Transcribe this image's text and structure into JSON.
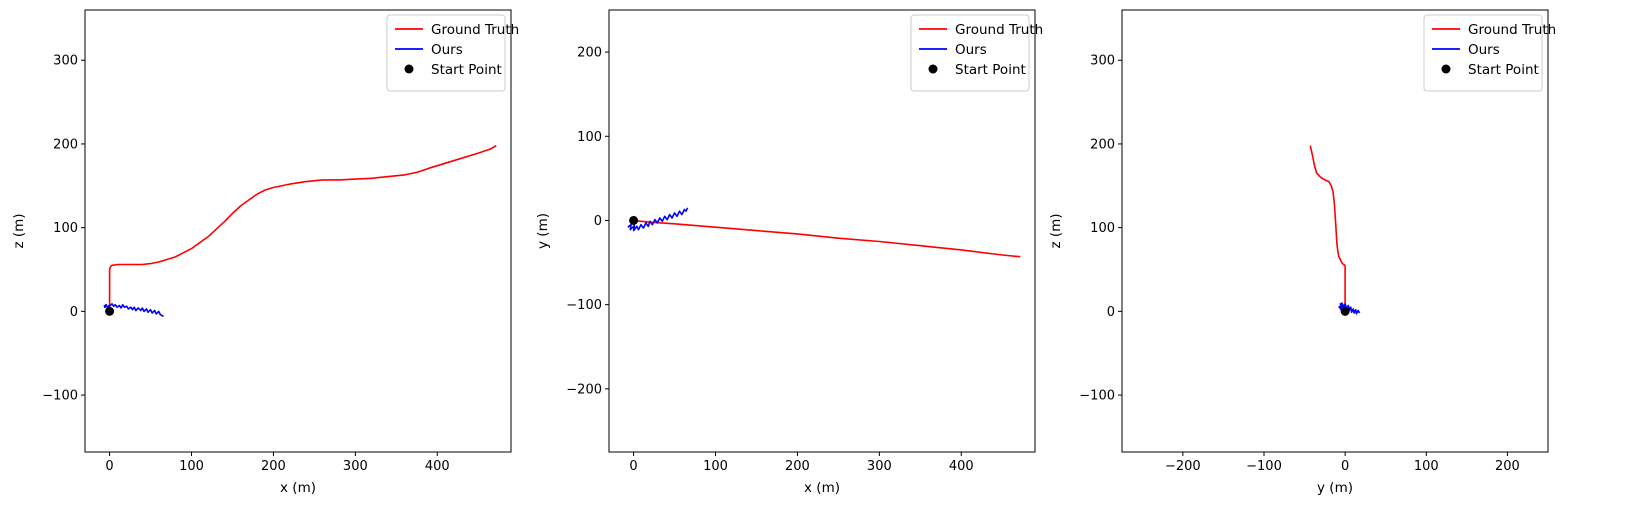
{
  "chart_data": [
    {
      "type": "line",
      "xlabel": "x (m)",
      "ylabel": "z (m)",
      "xlim": [
        -30,
        490
      ],
      "ylim": [
        -168,
        360
      ],
      "xticks": [
        0,
        100,
        200,
        300,
        400
      ],
      "yticks": [
        -100,
        0,
        100,
        200,
        300
      ],
      "grid": false,
      "legend_position": "top-right",
      "series": [
        {
          "name": "Ground Truth",
          "kind": "line",
          "color": "#ff0000",
          "points": [
            [
              0,
              0
            ],
            [
              0,
              10
            ],
            [
              0,
              30
            ],
            [
              0,
              45
            ],
            [
              0,
              50
            ],
            [
              1,
              53
            ],
            [
              3,
              55
            ],
            [
              10,
              56
            ],
            [
              25,
              56
            ],
            [
              40,
              56
            ],
            [
              50,
              57
            ],
            [
              60,
              59
            ],
            [
              70,
              62
            ],
            [
              80,
              65
            ],
            [
              90,
              70
            ],
            [
              100,
              75
            ],
            [
              110,
              82
            ],
            [
              120,
              89
            ],
            [
              130,
              98
            ],
            [
              140,
              107
            ],
            [
              150,
              117
            ],
            [
              160,
              126
            ],
            [
              170,
              133
            ],
            [
              180,
              140
            ],
            [
              190,
              145
            ],
            [
              200,
              148
            ],
            [
              220,
              152
            ],
            [
              240,
              155
            ],
            [
              260,
              157
            ],
            [
              280,
              157
            ],
            [
              300,
              158
            ],
            [
              320,
              159
            ],
            [
              340,
              161
            ],
            [
              360,
              163
            ],
            [
              375,
              166
            ],
            [
              390,
              171
            ],
            [
              410,
              177
            ],
            [
              430,
              183
            ],
            [
              450,
              189
            ],
            [
              465,
              194
            ],
            [
              472,
              198
            ]
          ]
        },
        {
          "name": "Ours",
          "kind": "line",
          "color": "#0000ff",
          "points": [
            [
              -7,
              6
            ],
            [
              -4,
              8
            ],
            [
              -6,
              5
            ],
            [
              0,
              7
            ],
            [
              -2,
              4
            ],
            [
              3,
              9
            ],
            [
              5,
              6
            ],
            [
              7,
              8
            ],
            [
              9,
              5
            ],
            [
              12,
              7
            ],
            [
              14,
              4
            ],
            [
              16,
              8
            ],
            [
              18,
              5
            ],
            [
              21,
              6
            ],
            [
              23,
              3
            ],
            [
              26,
              5
            ],
            [
              28,
              2
            ],
            [
              30,
              5
            ],
            [
              32,
              1
            ],
            [
              35,
              4
            ],
            [
              38,
              1
            ],
            [
              40,
              4
            ],
            [
              42,
              0
            ],
            [
              45,
              3
            ],
            [
              47,
              -1
            ],
            [
              50,
              2
            ],
            [
              52,
              -2
            ],
            [
              55,
              1
            ],
            [
              57,
              -3
            ],
            [
              60,
              0
            ],
            [
              62,
              -4
            ],
            [
              66,
              -6
            ]
          ]
        },
        {
          "name": "Start Point",
          "kind": "scatter",
          "color": "#000000",
          "points": [
            [
              0,
              0
            ]
          ]
        }
      ]
    },
    {
      "type": "line",
      "xlabel": "x (m)",
      "ylabel": "y (m)",
      "xlim": [
        -30,
        490
      ],
      "ylim": [
        -275,
        250
      ],
      "xticks": [
        0,
        100,
        200,
        300,
        400
      ],
      "yticks": [
        -200,
        -100,
        0,
        100,
        200
      ],
      "grid": false,
      "legend_position": "top-right",
      "series": [
        {
          "name": "Ground Truth",
          "kind": "line",
          "color": "#ff0000",
          "points": [
            [
              0,
              0
            ],
            [
              20,
              -2
            ],
            [
              50,
              -4
            ],
            [
              100,
              -8
            ],
            [
              150,
              -12
            ],
            [
              200,
              -16
            ],
            [
              250,
              -21
            ],
            [
              300,
              -25
            ],
            [
              350,
              -30
            ],
            [
              400,
              -35
            ],
            [
              450,
              -41
            ],
            [
              472,
              -43
            ]
          ]
        },
        {
          "name": "Ours",
          "kind": "line",
          "color": "#0000ff",
          "points": [
            [
              -7,
              -8
            ],
            [
              -3,
              -5
            ],
            [
              -4,
              -11
            ],
            [
              1,
              -6
            ],
            [
              0,
              -12
            ],
            [
              4,
              -7
            ],
            [
              6,
              -11
            ],
            [
              9,
              -5
            ],
            [
              12,
              -9
            ],
            [
              15,
              -3
            ],
            [
              18,
              -7
            ],
            [
              20,
              -1
            ],
            [
              23,
              -5
            ],
            [
              26,
              1
            ],
            [
              29,
              -3
            ],
            [
              32,
              3
            ],
            [
              35,
              -1
            ],
            [
              38,
              5
            ],
            [
              41,
              1
            ],
            [
              44,
              7
            ],
            [
              47,
              3
            ],
            [
              50,
              9
            ],
            [
              53,
              5
            ],
            [
              56,
              11
            ],
            [
              59,
              7
            ],
            [
              62,
              13
            ],
            [
              64,
              11
            ],
            [
              66,
              15
            ]
          ]
        },
        {
          "name": "Start Point",
          "kind": "scatter",
          "color": "#000000",
          "points": [
            [
              0,
              0
            ]
          ]
        }
      ]
    },
    {
      "type": "line",
      "xlabel": "y (m)",
      "ylabel": "z (m)",
      "xlim": [
        -275,
        250
      ],
      "ylim": [
        -168,
        360
      ],
      "xticks": [
        -200,
        -100,
        0,
        100,
        200
      ],
      "yticks": [
        -100,
        0,
        100,
        200,
        300
      ],
      "grid": false,
      "legend_position": "top-right",
      "series": [
        {
          "name": "Ground Truth",
          "kind": "line",
          "color": "#ff0000",
          "points": [
            [
              0,
              0
            ],
            [
              0,
              20
            ],
            [
              0,
              40
            ],
            [
              0,
              55
            ],
            [
              -2,
              56
            ],
            [
              -4,
              58
            ],
            [
              -6,
              62
            ],
            [
              -8,
              66
            ],
            [
              -9,
              72
            ],
            [
              -10,
              80
            ],
            [
              -11,
              95
            ],
            [
              -12,
              110
            ],
            [
              -13,
              125
            ],
            [
              -14,
              135
            ],
            [
              -15,
              143
            ],
            [
              -17,
              150
            ],
            [
              -20,
              155
            ],
            [
              -25,
              157
            ],
            [
              -30,
              160
            ],
            [
              -35,
              165
            ],
            [
              -38,
              175
            ],
            [
              -40,
              185
            ],
            [
              -43,
              198
            ]
          ]
        },
        {
          "name": "Ours",
          "kind": "line",
          "color": "#0000ff",
          "points": [
            [
              -8,
              6
            ],
            [
              -5,
              2
            ],
            [
              -6,
              9
            ],
            [
              -3,
              4
            ],
            [
              -4,
              10
            ],
            [
              -1,
              5
            ],
            [
              0,
              9
            ],
            [
              2,
              3
            ],
            [
              4,
              7
            ],
            [
              5,
              1
            ],
            [
              7,
              5
            ],
            [
              8,
              -1
            ],
            [
              10,
              3
            ],
            [
              11,
              -2
            ],
            [
              13,
              2
            ],
            [
              14,
              -3
            ],
            [
              16,
              1
            ],
            [
              18,
              -2
            ]
          ]
        },
        {
          "name": "Start Point",
          "kind": "scatter",
          "color": "#000000",
          "points": [
            [
              0,
              0
            ]
          ]
        }
      ]
    }
  ]
}
